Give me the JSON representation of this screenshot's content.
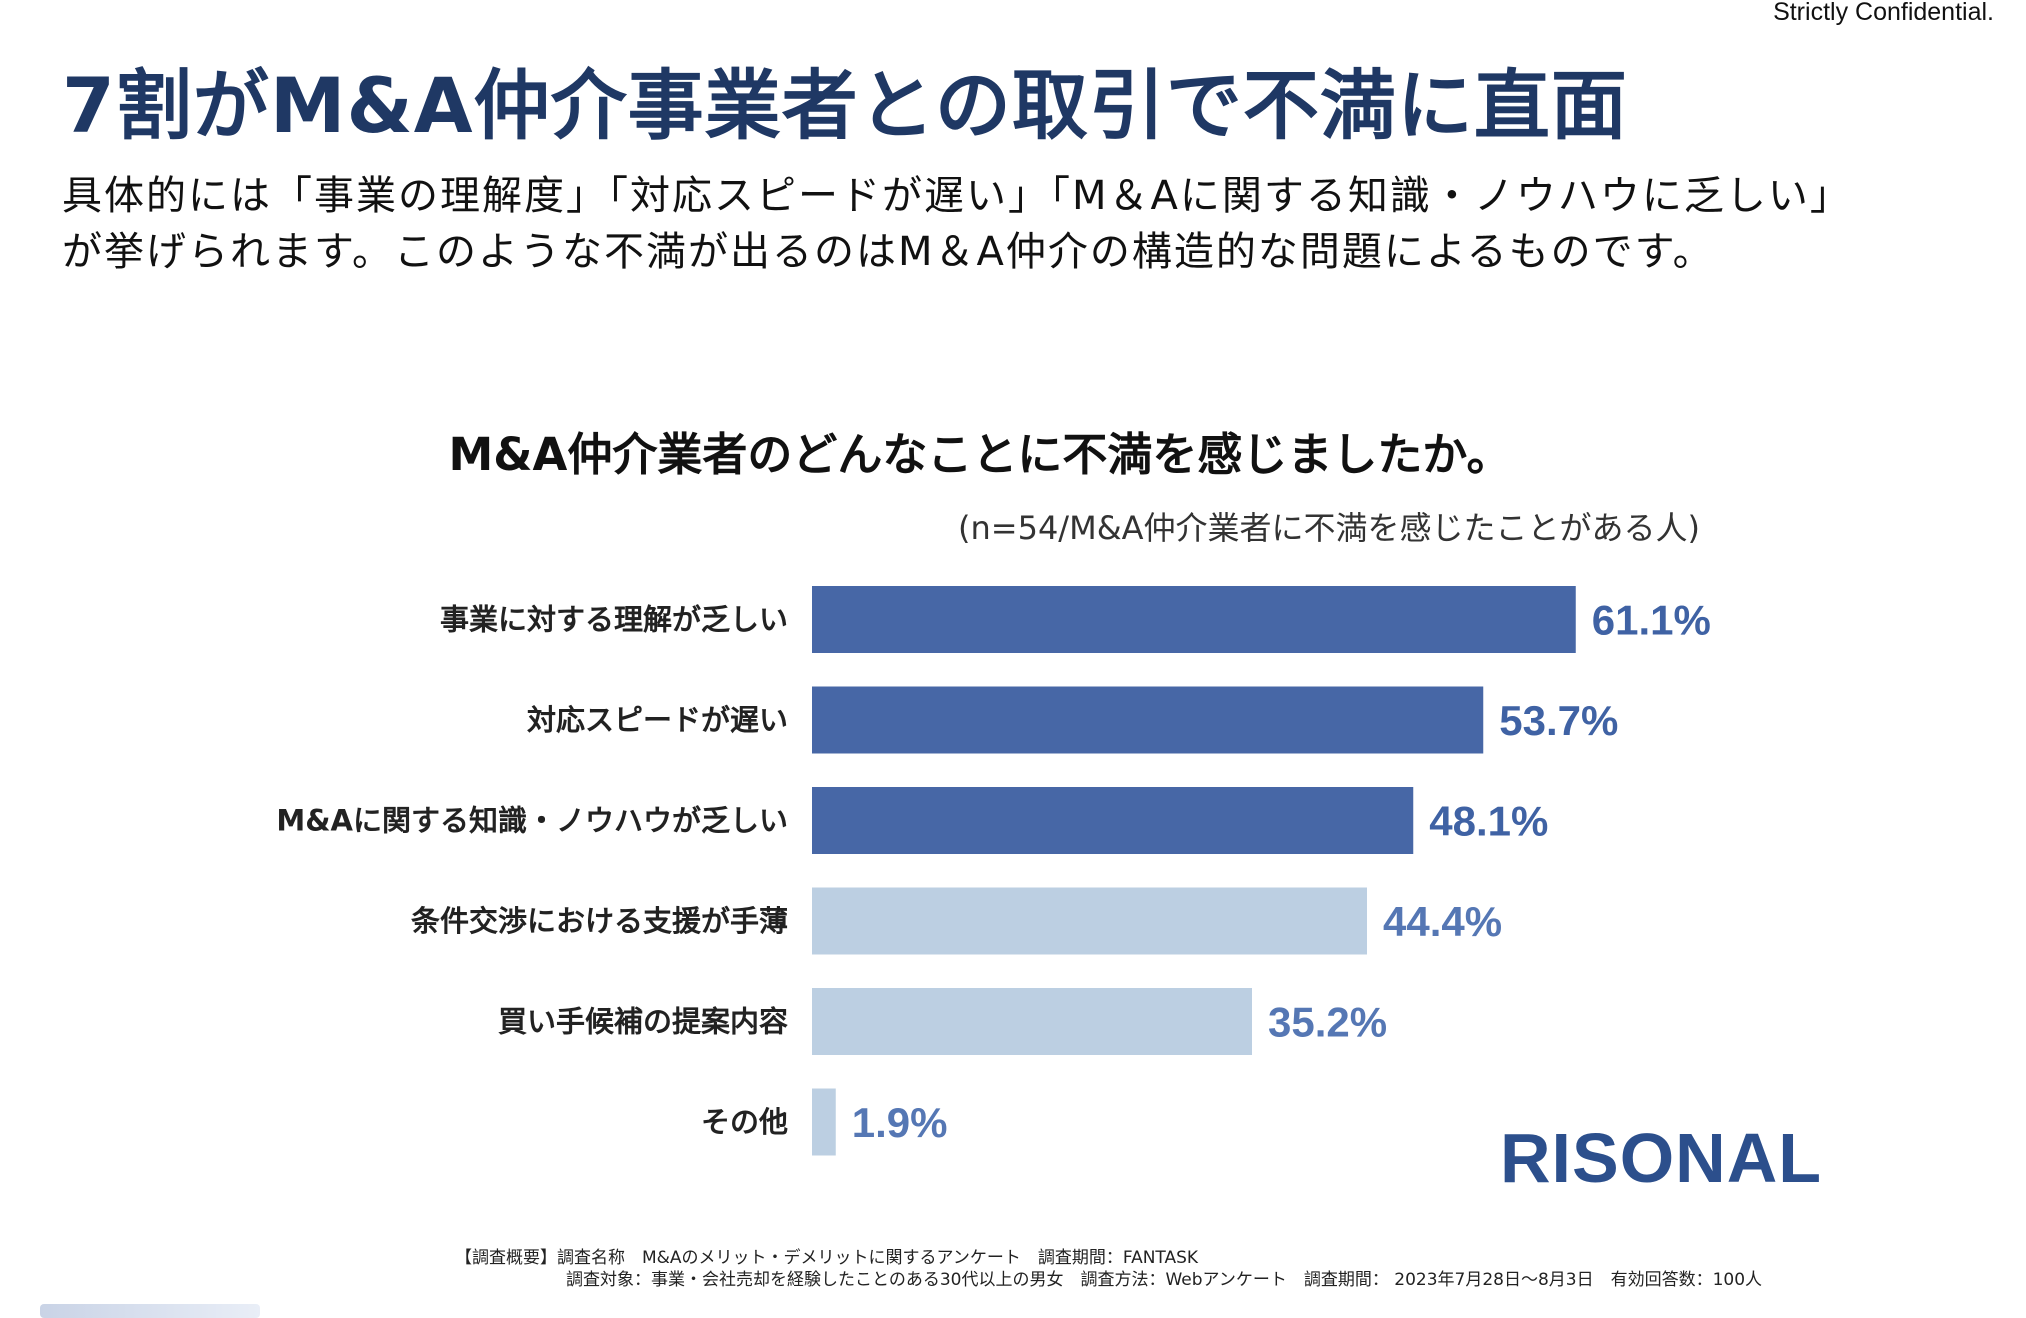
{
  "confidential": "Strictly Confidential.",
  "title": "7割がM&A仲介事業者との取引で不満に直面",
  "description": [
    "具体的には「事業の理解度」「対応スピードが遅い」「M＆Aに関する知識・ノウハウに乏しい」",
    "が挙げられます。このような不満が出るのはM＆A仲介の構造的な問題によるものです。"
  ],
  "chart_data": {
    "type": "bar",
    "orientation": "horizontal",
    "title": "M&A仲介業者のどんなことに不満を感じましたか。",
    "subtitle": "(n=54/M&A仲介業者に不満を感じたことがある人)",
    "categories": [
      "事業に対する理解が乏しい",
      "対応スピードが遅い",
      "M&Aに関する知識・ノウハウが乏しい",
      "条件交渉における支援が手薄",
      "買い手候補の提案内容",
      "その他"
    ],
    "values": [
      61.1,
      53.7,
      48.1,
      44.4,
      35.2,
      1.9
    ],
    "value_labels": [
      "61.1%",
      "53.7%",
      "48.1%",
      "44.4%",
      "35.2%",
      "1.9%"
    ],
    "highlighted": [
      true,
      true,
      true,
      false,
      false,
      false
    ],
    "colors": {
      "highlight": "#4767a6",
      "normal": "#bccfe2",
      "highlight_label": "#3f62a4",
      "normal_label": "#5577b4"
    },
    "xlim": [
      0,
      100
    ],
    "grid": false,
    "legend": "none"
  },
  "logo": "RISONAL",
  "footer": {
    "line1": "【調査概要】調査名称　M&Aのメリット・デメリットに関するアンケート　調査期間：FANTASK",
    "line2": "調査対象：事業・会社売却を経験したことのある30代以上の男女　調査方法：Webアンケート　調査期間： 2023年7月28日〜8月3日　有効回答数：100人"
  }
}
